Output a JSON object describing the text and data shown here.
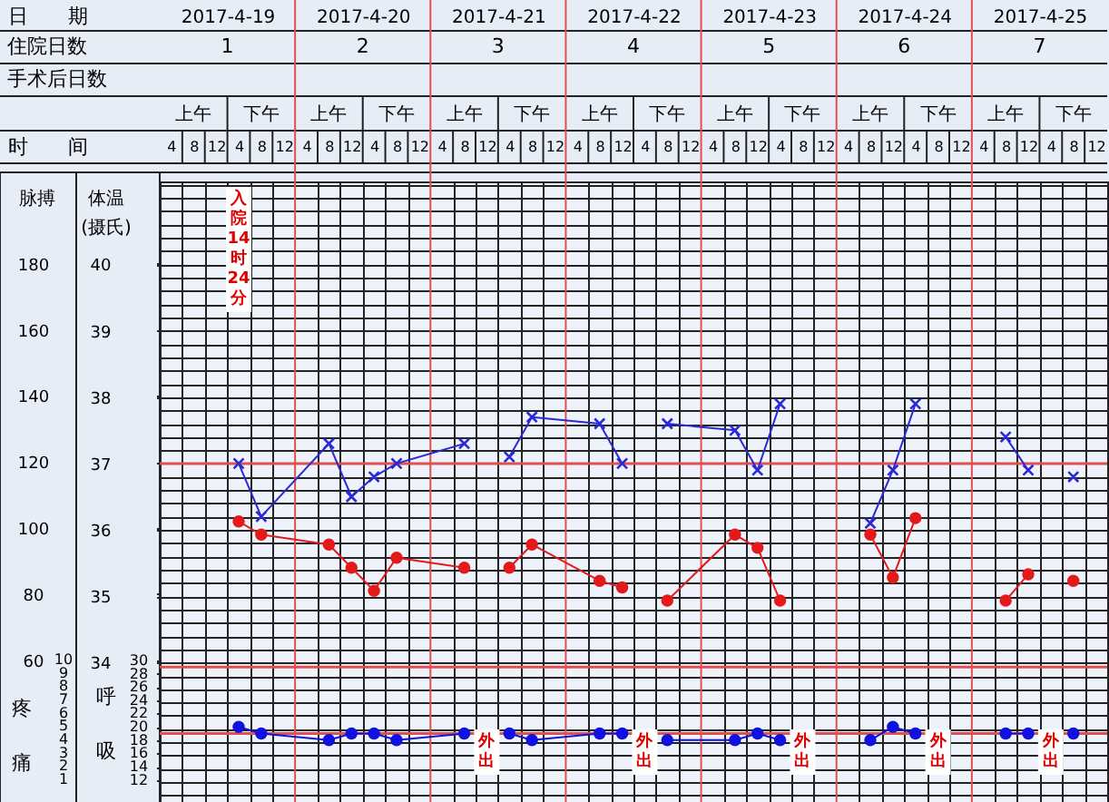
{
  "chart_data": {
    "type": "line",
    "xlabel": "时　　间",
    "x2label": "日　　期",
    "xlim": [
      "2017-04-19T02:00",
      "2017-04-26T02:00"
    ],
    "xticks": [
      {
        "value": "2017-04-19T04:00",
        "label": "4"
      },
      {
        "value": "2017-04-19T08:00",
        "label": "8"
      },
      {
        "value": "2017-04-19T12:00",
        "label": "12"
      },
      {
        "value": "2017-04-19T16:00",
        "label": "4"
      },
      {
        "value": "2017-04-19T20:00",
        "label": "8"
      },
      {
        "value": "2017-04-20T00:00",
        "label": "12"
      },
      {
        "value": "2017-04-20T04:00",
        "label": "4"
      },
      {
        "value": "2017-04-20T08:00",
        "label": "8"
      },
      {
        "value": "2017-04-20T12:00",
        "label": "12"
      },
      {
        "value": "2017-04-20T16:00",
        "label": "4"
      },
      {
        "value": "2017-04-20T20:00",
        "label": "8"
      },
      {
        "value": "2017-04-21T00:00",
        "label": "12"
      },
      {
        "value": "2017-04-21T04:00",
        "label": "4"
      },
      {
        "value": "2017-04-21T08:00",
        "label": "8"
      },
      {
        "value": "2017-04-21T12:00",
        "label": "12"
      },
      {
        "value": "2017-04-21T16:00",
        "label": "4"
      },
      {
        "value": "2017-04-21T20:00",
        "label": "8"
      },
      {
        "value": "2017-04-22T00:00",
        "label": "12"
      },
      {
        "value": "2017-04-22T04:00",
        "label": "4"
      },
      {
        "value": "2017-04-22T08:00",
        "label": "8"
      },
      {
        "value": "2017-04-22T12:00",
        "label": "12"
      },
      {
        "value": "2017-04-22T16:00",
        "label": "4"
      },
      {
        "value": "2017-04-22T20:00",
        "label": "8"
      },
      {
        "value": "2017-04-23T00:00",
        "label": "12"
      },
      {
        "value": "2017-04-23T04:00",
        "label": "4"
      },
      {
        "value": "2017-04-23T08:00",
        "label": "8"
      },
      {
        "value": "2017-04-23T12:00",
        "label": "12"
      },
      {
        "value": "2017-04-23T16:00",
        "label": "4"
      },
      {
        "value": "2017-04-23T20:00",
        "label": "8"
      },
      {
        "value": "2017-04-24T00:00",
        "label": "12"
      },
      {
        "value": "2017-04-24T04:00",
        "label": "4"
      },
      {
        "value": "2017-04-24T08:00",
        "label": "8"
      },
      {
        "value": "2017-04-24T12:00",
        "label": "12"
      },
      {
        "value": "2017-04-24T16:00",
        "label": "4"
      },
      {
        "value": "2017-04-24T20:00",
        "label": "8"
      },
      {
        "value": "2017-04-25T00:00",
        "label": "12"
      },
      {
        "value": "2017-04-25T04:00",
        "label": "4"
      },
      {
        "value": "2017-04-25T08:00",
        "label": "8"
      },
      {
        "value": "2017-04-25T12:00",
        "label": "12"
      },
      {
        "value": "2017-04-25T16:00",
        "label": "4"
      },
      {
        "value": "2017-04-25T20:00",
        "label": "8"
      },
      {
        "value": "2017-04-26T00:00",
        "label": "12"
      }
    ],
    "x2lim": [
      "2017-04-19T02:00",
      "2017-04-26T02:00"
    ],
    "x2ticks": [
      {
        "value": "2017-04-19T14:00",
        "label": "2017-4-19"
      },
      {
        "value": "2017-04-20T14:00",
        "label": "2017-4-20"
      },
      {
        "value": "2017-04-21T14:00",
        "label": "2017-4-21"
      },
      {
        "value": "2017-04-22T14:00",
        "label": "2017-4-22"
      },
      {
        "value": "2017-04-23T14:00",
        "label": "2017-4-23"
      },
      {
        "value": "2017-04-24T14:00",
        "label": "2017-4-24"
      },
      {
        "value": "2017-04-25T14:00",
        "label": "2017-4-25"
      }
    ],
    "ylabel": "体温(摄氏)",
    "ylim": [
      31.9,
      41.25
    ],
    "yticks": [
      34,
      35,
      36,
      37,
      38,
      39,
      40
    ],
    "y2label": "脉搏",
    "y2lim": [
      17,
      205
    ],
    "y2ticks": [
      60,
      80,
      100,
      120,
      140,
      160,
      180
    ],
    "y3label": "呼吸",
    "y3lim": [
      8.7,
      102
    ],
    "y3ticks": [
      12,
      14,
      16,
      18,
      20,
      22,
      24,
      26,
      28,
      30
    ],
    "grid": true,
    "ref_lines": [
      {
        "axis": "y",
        "value": 37,
        "color": "#e05050"
      },
      {
        "axis": "x",
        "value": "2017-04-20T02:00",
        "color": "#e05050"
      },
      {
        "axis": "x",
        "value": "2017-04-21T02:00",
        "color": "#e05050"
      },
      {
        "axis": "x",
        "value": "2017-04-22T02:00",
        "color": "#e05050"
      },
      {
        "axis": "x",
        "value": "2017-04-23T02:00",
        "color": "#e05050"
      },
      {
        "axis": "x",
        "value": "2017-04-24T02:00",
        "color": "#e05050"
      },
      {
        "axis": "x",
        "value": "2017-04-25T02:00",
        "color": "#e05050"
      },
      {
        "axis": "y3",
        "value": 29,
        "color": "#e05050"
      },
      {
        "axis": "y3",
        "value": 19,
        "color": "#e05050"
      }
    ],
    "annotations": [
      "住院日数",
      "1",
      "2",
      "3",
      "4",
      "5",
      "6",
      "7",
      "手术后日数",
      "上午",
      "下午",
      "上午",
      "下午",
      "上午",
      "下午",
      "上午",
      "下午",
      "上午",
      "下午",
      "上午",
      "下午",
      "上午",
      "下午",
      "疼痛",
      "10",
      "9",
      "8",
      "7",
      "6",
      "5",
      "4",
      "3",
      "2",
      "1",
      "入院14时24分",
      "外出",
      "外出",
      "外出",
      "外出",
      "外出"
    ],
    "series": [
      {
        "axis": "y",
        "color": "#2a2ad4",
        "marker": "cross",
        "x": [
          "2017-04-19T16:00",
          "2017-04-19T20:00",
          "2017-04-20T08:00",
          "2017-04-20T12:00",
          "2017-04-20T16:00",
          "2017-04-20T20:00",
          "2017-04-21T08:00",
          "2017-04-21T12:00",
          "2017-04-21T16:00",
          "2017-04-21T20:00",
          "2017-04-22T08:00",
          "2017-04-22T12:00",
          "2017-04-22T16:00",
          "2017-04-22T20:00",
          "2017-04-23T08:00",
          "2017-04-23T12:00",
          "2017-04-23T16:00",
          "2017-04-23T20:00",
          "2017-04-24T08:00",
          "2017-04-24T12:00",
          "2017-04-24T16:00",
          "2017-04-24T20:00",
          "2017-04-25T08:00",
          "2017-04-25T12:00",
          "2017-04-25T16:00",
          "2017-04-25T20:00"
        ],
        "values": [
          37.0,
          36.2,
          37.3,
          36.5,
          36.8,
          37.0,
          37.3,
          null,
          37.1,
          37.7,
          37.6,
          37.0,
          null,
          37.6,
          37.5,
          36.9,
          37.9,
          null,
          36.1,
          36.9,
          37.9,
          null,
          37.4,
          36.9,
          null,
          36.8
        ]
      },
      {
        "axis": "y2",
        "color": "#e41a1a",
        "marker": "circle",
        "x": [
          "2017-04-19T16:00",
          "2017-04-19T20:00",
          "2017-04-20T08:00",
          "2017-04-20T12:00",
          "2017-04-20T16:00",
          "2017-04-20T20:00",
          "2017-04-21T08:00",
          "2017-04-21T12:00",
          "2017-04-21T16:00",
          "2017-04-21T20:00",
          "2017-04-22T08:00",
          "2017-04-22T12:00",
          "2017-04-22T16:00",
          "2017-04-22T20:00",
          "2017-04-23T08:00",
          "2017-04-23T12:00",
          "2017-04-23T16:00",
          "2017-04-23T20:00",
          "2017-04-24T08:00",
          "2017-04-24T12:00",
          "2017-04-24T16:00",
          "2017-04-24T20:00",
          "2017-04-25T08:00",
          "2017-04-25T12:00",
          "2017-04-25T16:00",
          "2017-04-25T20:00"
        ],
        "values": [
          102,
          98,
          95,
          88,
          81,
          91,
          88,
          null,
          88,
          95,
          84,
          82,
          null,
          78,
          98,
          94,
          78,
          null,
          98,
          85,
          103,
          null,
          78,
          86,
          null,
          84
        ]
      },
      {
        "axis": "y3",
        "color": "#1010e0",
        "marker": "circle",
        "x": [
          "2017-04-19T16:00",
          "2017-04-19T20:00",
          "2017-04-20T08:00",
          "2017-04-20T12:00",
          "2017-04-20T16:00",
          "2017-04-20T20:00",
          "2017-04-21T08:00",
          "2017-04-21T12:00",
          "2017-04-21T16:00",
          "2017-04-21T20:00",
          "2017-04-22T08:00",
          "2017-04-22T12:00",
          "2017-04-22T16:00",
          "2017-04-22T20:00",
          "2017-04-23T08:00",
          "2017-04-23T12:00",
          "2017-04-23T16:00",
          "2017-04-23T20:00",
          "2017-04-24T08:00",
          "2017-04-24T12:00",
          "2017-04-24T16:00",
          "2017-04-24T20:00",
          "2017-04-25T08:00",
          "2017-04-25T12:00",
          "2017-04-25T16:00",
          "2017-04-25T20:00"
        ],
        "values": [
          20,
          19,
          18,
          19,
          19,
          18,
          19,
          null,
          19,
          18,
          19,
          19,
          null,
          18,
          18,
          19,
          18,
          null,
          18,
          20,
          19,
          null,
          19,
          19,
          null,
          19
        ]
      }
    ]
  }
}
